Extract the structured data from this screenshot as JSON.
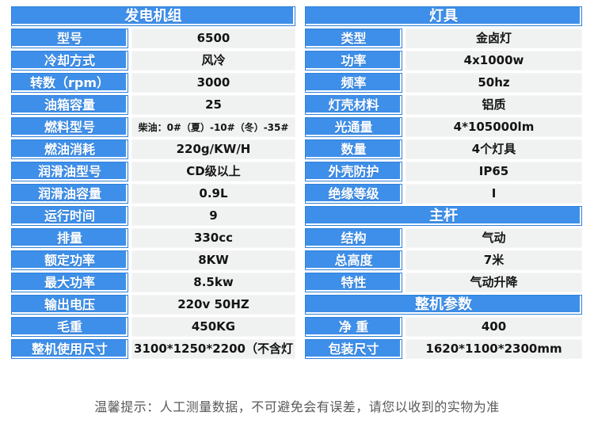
{
  "colors": {
    "accent_blue": "#3e8fe9",
    "accent_blue_border": "#2e80da",
    "value_background": "#f0f1f1",
    "value_text": "#141414",
    "note_text": "#595959"
  },
  "generator_table": {
    "header": "发电机组",
    "rows": [
      {
        "label": "型号",
        "value": "6500"
      },
      {
        "label": "冷却方式",
        "value": "风冷"
      },
      {
        "label": "转数（rpm）",
        "value": "3000"
      },
      {
        "label": "油箱容量",
        "value": "25"
      },
      {
        "label": "燃料型号",
        "value": "柴油：0#（夏）-10#（冬）-35#"
      },
      {
        "label": "燃油消耗",
        "value": "220g/KW/H"
      },
      {
        "label": "润滑油型号",
        "value": "CD级以上"
      },
      {
        "label": "润滑油容量",
        "value": "0.9L"
      },
      {
        "label": "运行时间",
        "value": "9"
      },
      {
        "label": "排量",
        "value": "330cc"
      },
      {
        "label": "额定功率",
        "value": "8KW"
      },
      {
        "label": "最大功率",
        "value": "8.5kw"
      },
      {
        "label": "输出电压",
        "value": "220v 50HZ"
      },
      {
        "label": "毛重",
        "value": "450KG"
      },
      {
        "label": "整机使用尺寸",
        "value": "3100*1250*2200（不含灯"
      }
    ]
  },
  "lamp_table": {
    "header": "灯具",
    "rows": [
      {
        "label": "类型",
        "value": "金卤灯"
      },
      {
        "label": "功率",
        "value": "4x1000w"
      },
      {
        "label": "频率",
        "value": "50hz"
      },
      {
        "label": "灯壳材料",
        "value": "铝质"
      },
      {
        "label": "光通量",
        "value": "4*105000lm"
      },
      {
        "label": "数量",
        "value": "4个灯具"
      },
      {
        "label": "外壳防护",
        "value": "IP65"
      },
      {
        "label": "绝缘等级",
        "value": "I"
      }
    ],
    "pole_header": "主杆",
    "pole_rows": [
      {
        "label": "结构",
        "value": "气动"
      },
      {
        "label": "总高度",
        "value": "7米"
      },
      {
        "label": "特性",
        "value": "气动升降"
      }
    ],
    "whole_header": "整机参数",
    "whole_rows": [
      {
        "label": "净 重",
        "value": "400"
      },
      {
        "label": "包装尺寸",
        "value": "1620*1100*2300mm"
      }
    ]
  },
  "note": "温馨提示：人工测量数据，不可避免会有误差，请您以收到的实物为准"
}
